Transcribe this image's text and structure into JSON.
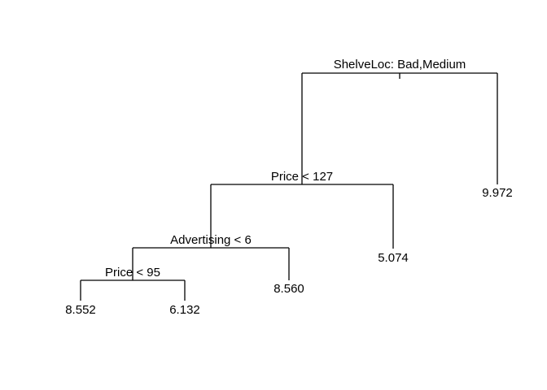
{
  "tree": {
    "nodes": [
      {
        "id": "root",
        "split": "ShelveLoc: Bad,Medium",
        "children": [
          "n1",
          "leaf_9972"
        ]
      },
      {
        "id": "n1",
        "split": "Price < 127",
        "children": [
          "n2",
          "leaf_5074"
        ]
      },
      {
        "id": "n2",
        "split": "Advertising < 6",
        "children": [
          "n3",
          "leaf_8560"
        ]
      },
      {
        "id": "n3",
        "split": "Price < 95",
        "children": [
          "leaf_8552",
          "leaf_6132"
        ]
      }
    ],
    "leaves": [
      {
        "id": "leaf_8552",
        "value": "8.552"
      },
      {
        "id": "leaf_6132",
        "value": "6.132"
      },
      {
        "id": "leaf_8560",
        "value": "8.560"
      },
      {
        "id": "leaf_5074",
        "value": "5.074"
      },
      {
        "id": "leaf_9972",
        "value": "9.972"
      }
    ]
  }
}
